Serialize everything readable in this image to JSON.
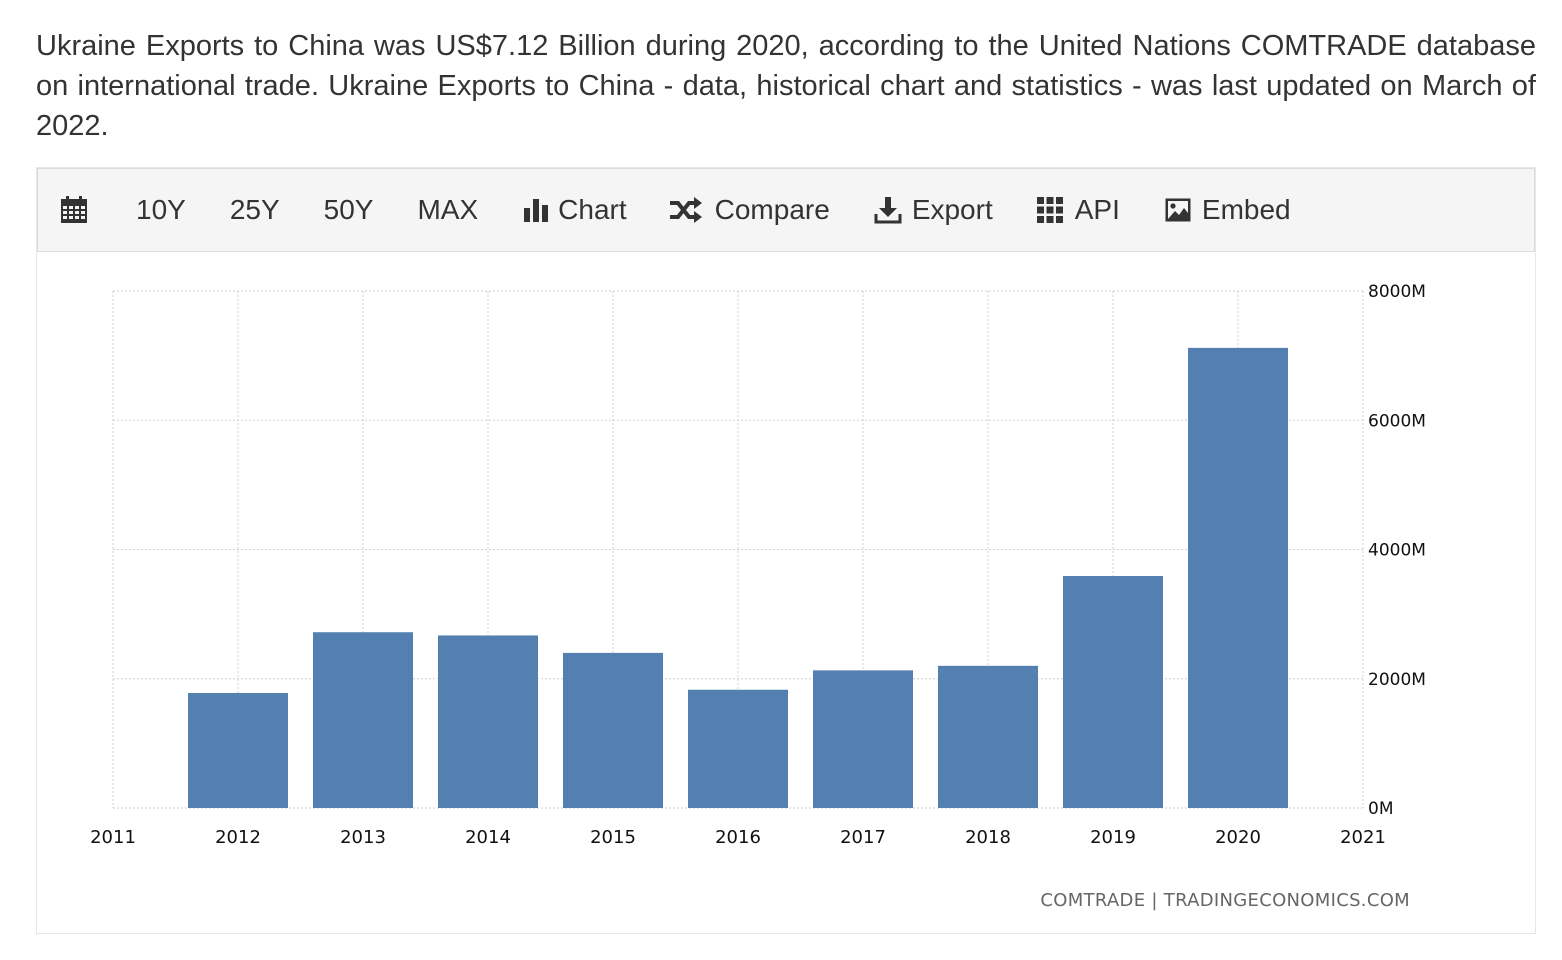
{
  "description": "Ukraine Exports to China was US$7.12 Billion during 2020, according to the United Nations COMTRADE database on international trade. Ukraine Exports to China - data, historical chart and statistics - was last updated on March of 2022.",
  "toolbar": {
    "calendar_icon": "calendar-icon",
    "range_10y": "10Y",
    "range_25y": "25Y",
    "range_50y": "50Y",
    "range_max": "MAX",
    "chart_label": "Chart",
    "compare_label": "Compare",
    "export_label": "Export",
    "api_label": "API",
    "embed_label": "Embed"
  },
  "colors": {
    "bar": "#5380b0",
    "grid": "#d0d0d0",
    "toolbar_bg": "#f5f5f5",
    "text": "#333333"
  },
  "source": "COMTRADE | TRADINGECONOMICS.COM",
  "chart_data": {
    "type": "bar",
    "x_ticks": [
      "2011",
      "2012",
      "2013",
      "2014",
      "2015",
      "2016",
      "2017",
      "2018",
      "2019",
      "2020",
      "2021"
    ],
    "categories": [
      "2012",
      "2013",
      "2014",
      "2015",
      "2016",
      "2017",
      "2018",
      "2019",
      "2020"
    ],
    "values": [
      1780,
      2720,
      2670,
      2400,
      1830,
      2130,
      2200,
      3590,
      7120
    ],
    "value_unit": "M",
    "y_ticks": [
      "0M",
      "2000M",
      "4000M",
      "6000M",
      "8000M"
    ],
    "ylim": [
      0,
      8000
    ],
    "y_axis_position": "right",
    "grid": true,
    "legend": false
  }
}
